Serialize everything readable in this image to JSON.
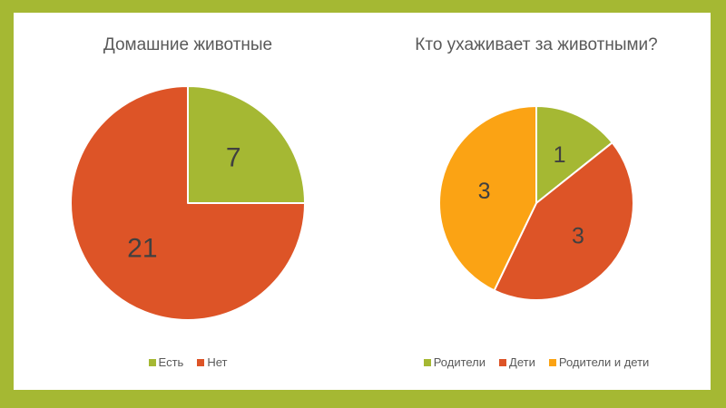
{
  "slide": {
    "frame_color": "#a5b833",
    "canvas_color": "#ffffff",
    "title_color": "#595959",
    "legend_text_color": "#595959"
  },
  "chart_data": [
    {
      "type": "pie",
      "title": "Домашние животные",
      "categories": [
        "Есть",
        "Нет"
      ],
      "values": [
        7,
        21
      ],
      "data_labels": [
        "7",
        "21"
      ],
      "colors": [
        "#a5b833",
        "#dd5427"
      ],
      "label_color": "#404040",
      "legend_position": "bottom",
      "start_angle_deg": 0,
      "direction": "clockwise"
    },
    {
      "type": "pie",
      "title": "Кто ухаживает за животными?",
      "categories": [
        "Родители",
        "Дети",
        "Родители и дети"
      ],
      "values": [
        1,
        3,
        3
      ],
      "data_labels": [
        "1",
        "3",
        "3"
      ],
      "colors": [
        "#a5b833",
        "#dd5427",
        "#fba314"
      ],
      "label_color": "#404040",
      "legend_position": "bottom",
      "start_angle_deg": 0,
      "direction": "clockwise"
    }
  ]
}
